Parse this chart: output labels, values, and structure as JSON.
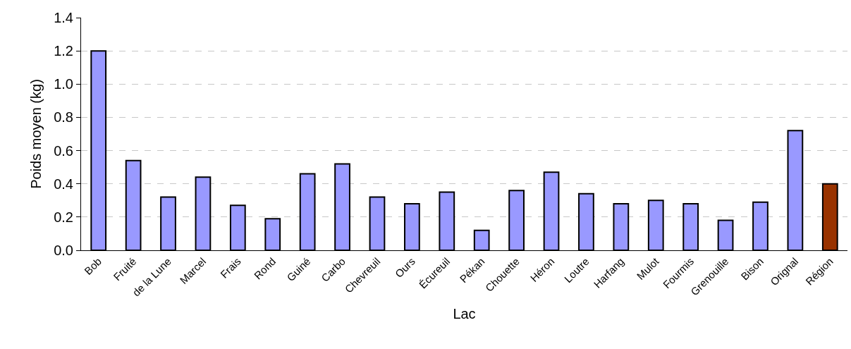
{
  "chart_data": {
    "type": "bar",
    "xlabel": "Lac",
    "ylabel": "Poids moyen (kg)",
    "categories": [
      "Bob",
      "Fruité",
      "de la Lune",
      "Marcel",
      "Frais",
      "Rond",
      "Guiné",
      "Carbo",
      "Chevreuil",
      "Ours",
      "Écureuil",
      "Pékan",
      "Chouette",
      "Héron",
      "Loutre",
      "Harfang",
      "Mulot",
      "Fourmis",
      "Grenouille",
      "Bison",
      "Orignal",
      "Région"
    ],
    "values": [
      1.2,
      0.54,
      0.32,
      0.44,
      0.27,
      0.19,
      0.46,
      0.52,
      0.32,
      0.28,
      0.35,
      0.12,
      0.36,
      0.47,
      0.34,
      0.28,
      0.3,
      0.28,
      0.18,
      0.29,
      0.72,
      0.4
    ],
    "colors": [
      "#9999ff",
      "#9999ff",
      "#9999ff",
      "#9999ff",
      "#9999ff",
      "#9999ff",
      "#9999ff",
      "#9999ff",
      "#9999ff",
      "#9999ff",
      "#9999ff",
      "#9999ff",
      "#9999ff",
      "#9999ff",
      "#9999ff",
      "#9999ff",
      "#9999ff",
      "#9999ff",
      "#9999ff",
      "#9999ff",
      "#9999ff",
      "#993300"
    ],
    "ylim": [
      0,
      1.4
    ],
    "yticks": [
      {
        "value": 0,
        "label": "0.0"
      },
      {
        "value": 0.2,
        "label": "0.2"
      },
      {
        "value": 0.4,
        "label": "0.4"
      },
      {
        "value": 0.6,
        "label": "0.6"
      },
      {
        "value": 0.8,
        "label": "0.8"
      },
      {
        "value": 1,
        "label": "1.0"
      },
      {
        "value": 1.2,
        "label": "1.2"
      },
      {
        "value": 1.4,
        "label": "1.4"
      }
    ],
    "grid": "y"
  }
}
